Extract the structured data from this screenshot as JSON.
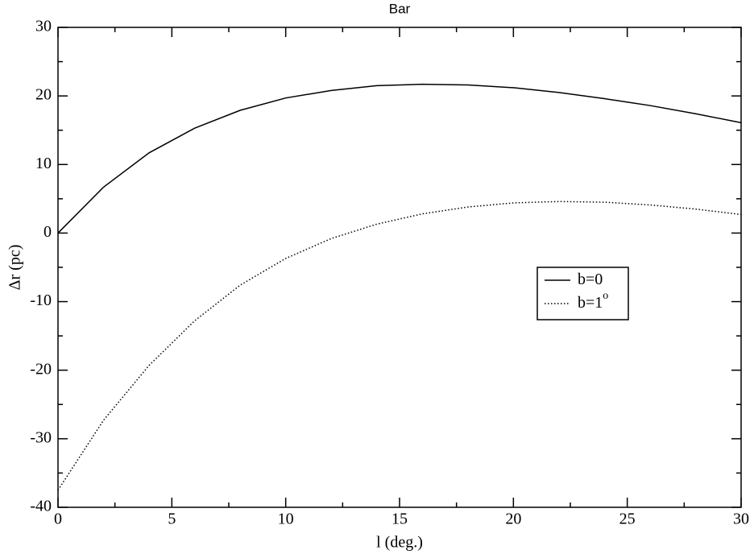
{
  "chart_data": {
    "type": "line",
    "title": "Bar",
    "xlabel": "l (deg.)",
    "ylabel": "Δr (pc)",
    "x": [
      0,
      2,
      4,
      6,
      8,
      10,
      12,
      14,
      16,
      18,
      20,
      22,
      24,
      26,
      28,
      30
    ],
    "series": [
      {
        "name": "b=0",
        "color": "#000000",
        "dash": "solid",
        "values": [
          0,
          6.7,
          11.7,
          15.3,
          17.9,
          19.7,
          20.8,
          21.5,
          21.7,
          21.6,
          21.2,
          20.5,
          19.6,
          18.6,
          17.4,
          16.1
        ]
      },
      {
        "name": "b=1",
        "name_superscript": "o",
        "color": "#000000",
        "dash": "dotted",
        "values": [
          -37.5,
          -27.3,
          -19.3,
          -12.8,
          -7.6,
          -3.7,
          -0.8,
          1.3,
          2.8,
          3.8,
          4.4,
          4.6,
          4.5,
          4.1,
          3.5,
          2.7
        ]
      }
    ],
    "xlim": [
      0,
      30
    ],
    "xticks": [
      0,
      5,
      10,
      15,
      20,
      25,
      30
    ],
    "xminorticks": [
      2.5,
      7.5,
      12.5,
      17.5,
      22.5,
      27.5
    ],
    "ylim": [
      -40,
      30
    ],
    "yticks": [
      -40,
      -30,
      -20,
      -10,
      0,
      10,
      20,
      30
    ],
    "yminorticks": [
      -35,
      -25,
      -15,
      -5,
      5,
      15,
      25
    ],
    "legend": "center-right",
    "grid": false
  }
}
